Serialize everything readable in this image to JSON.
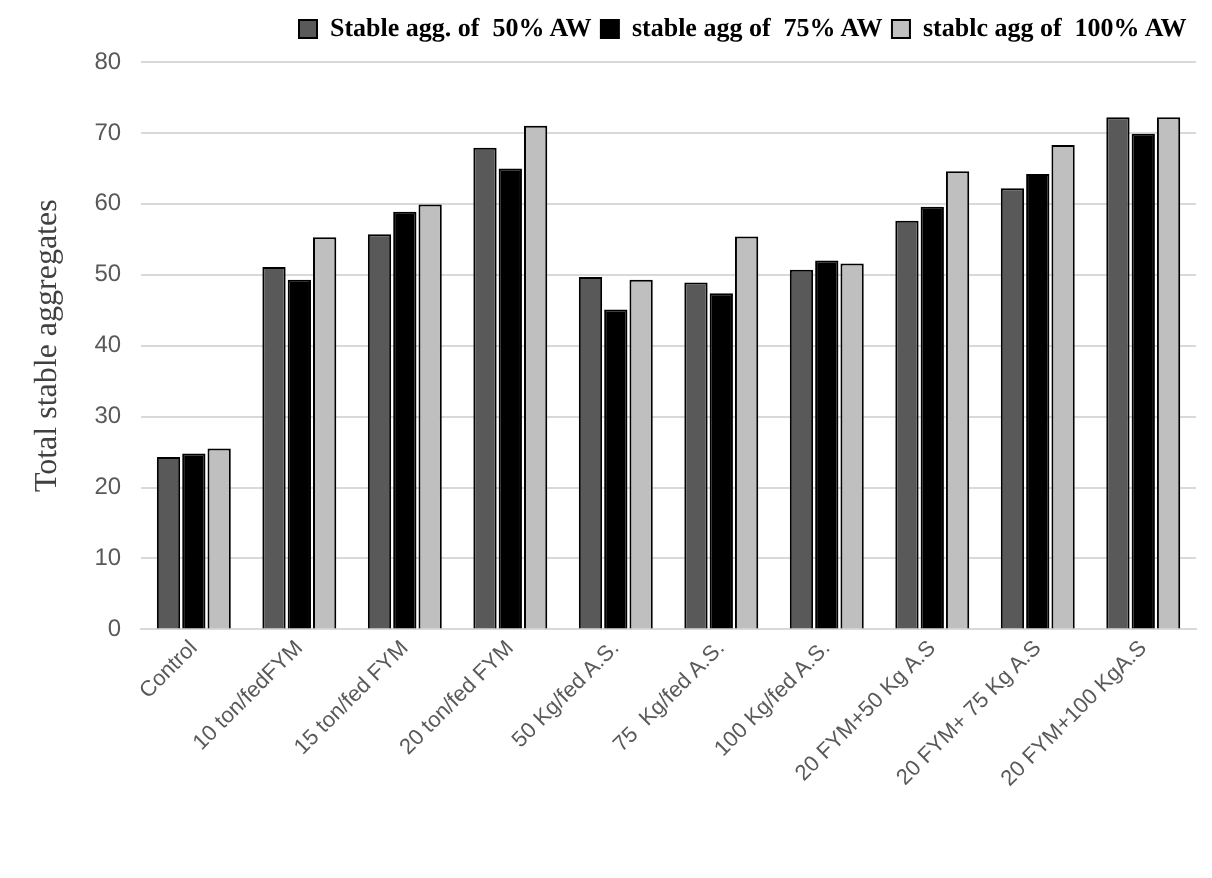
{
  "chart_data": {
    "type": "bar",
    "ylabel": "Total stable aggregates",
    "categories": [
      "Control",
      "10 ton/fedFYM",
      "15 ton/fed FYM",
      "20 ton/fed FYM",
      "50 Kg/fed A.S.",
      "75  Kg/fed A.S.",
      "100 Kg/fed A.S.",
      "20 FYM+50 Kg A.S",
      "20 FYM+ 75 Kg A.S",
      "20 FYM+100 KgA.S"
    ],
    "series": [
      {
        "name": "Stable agg. of  50% AW",
        "color": "#595959",
        "values": [
          24.3,
          51.1,
          55.7,
          67.9,
          49.7,
          48.9,
          50.7,
          57.6,
          62.2,
          72.2
        ]
      },
      {
        "name": "stable agg of  75% AW",
        "color": "#000000",
        "values": [
          24.8,
          49.3,
          58.9,
          65.0,
          45.1,
          47.4,
          52.0,
          59.6,
          64.2,
          69.9
        ]
      },
      {
        "name": "stablc agg of  100% AW",
        "color": "#bfbfbf",
        "values": [
          25.5,
          55.3,
          59.9,
          71.0,
          49.3,
          55.4,
          51.6,
          64.6,
          68.3,
          72.2
        ]
      }
    ],
    "ylim": [
      0,
      80
    ],
    "yticks": [
      0,
      10,
      20,
      30,
      40,
      50,
      60,
      70,
      80
    ],
    "grid": "y",
    "legend": "top right"
  }
}
